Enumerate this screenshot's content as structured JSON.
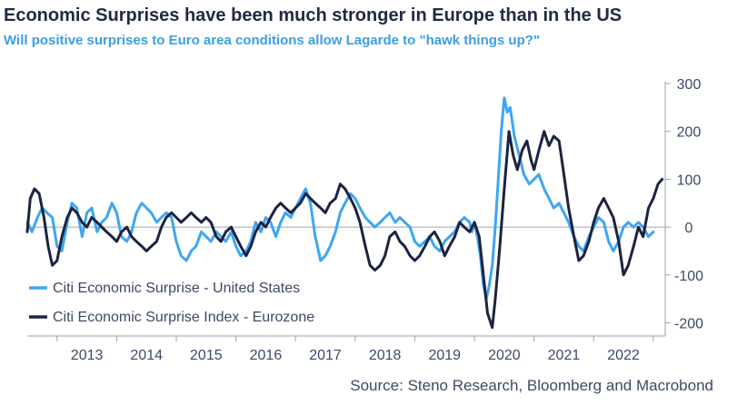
{
  "header": {
    "title": "Economic Surprises have been much stronger in Europe than in the US",
    "subtitle": "Will positive surprises to Euro area conditions allow Lagarde to \"hawk things up?\""
  },
  "footer": {
    "source": "Source: Steno Research, Bloomberg and Macrobond"
  },
  "colors": {
    "us": "#3ea6f2",
    "eurozone": "#1c2340",
    "axis": "#9aa3b2",
    "text": "#3a4a66"
  },
  "chart_data": {
    "type": "line",
    "title": "Economic Surprises have been much stronger in Europe than in the US",
    "subtitle": "Will positive surprises to Euro area conditions allow Lagarde to \"hawk things up?\"",
    "xlabel": "",
    "ylabel": "",
    "xlim": [
      2012.5,
      2023.2
    ],
    "ylim": [
      -220,
      300
    ],
    "xticks": [
      "2013",
      "2014",
      "2015",
      "2016",
      "2017",
      "2018",
      "2019",
      "2020",
      "2021",
      "2022"
    ],
    "yticks": [
      300,
      200,
      100,
      0,
      -100,
      -200
    ],
    "ytick_labels": [
      "300",
      "200",
      "100",
      "0",
      "-100",
      "-200"
    ],
    "grid": false,
    "legend_position": "bottom-left",
    "series": [
      {
        "name": "Citi Economic Surprise - United States",
        "color": "#3ea6f2",
        "points": [
          [
            2012.5,
            10
          ],
          [
            2012.58,
            -10
          ],
          [
            2012.67,
            20
          ],
          [
            2012.75,
            40
          ],
          [
            2012.83,
            30
          ],
          [
            2012.92,
            20
          ],
          [
            2013.0,
            -40
          ],
          [
            2013.08,
            -50
          ],
          [
            2013.17,
            10
          ],
          [
            2013.25,
            50
          ],
          [
            2013.33,
            40
          ],
          [
            2013.42,
            -20
          ],
          [
            2013.5,
            30
          ],
          [
            2013.58,
            40
          ],
          [
            2013.67,
            -10
          ],
          [
            2013.75,
            10
          ],
          [
            2013.83,
            20
          ],
          [
            2013.92,
            50
          ],
          [
            2014.0,
            30
          ],
          [
            2014.08,
            -20
          ],
          [
            2014.17,
            -30
          ],
          [
            2014.25,
            -10
          ],
          [
            2014.33,
            30
          ],
          [
            2014.42,
            50
          ],
          [
            2014.5,
            40
          ],
          [
            2014.58,
            30
          ],
          [
            2014.67,
            10
          ],
          [
            2014.75,
            20
          ],
          [
            2014.83,
            30
          ],
          [
            2014.92,
            20
          ],
          [
            2015.0,
            -30
          ],
          [
            2015.08,
            -60
          ],
          [
            2015.17,
            -70
          ],
          [
            2015.25,
            -50
          ],
          [
            2015.33,
            -40
          ],
          [
            2015.42,
            -10
          ],
          [
            2015.5,
            -20
          ],
          [
            2015.58,
            -30
          ],
          [
            2015.67,
            -10
          ],
          [
            2015.75,
            -20
          ],
          [
            2015.83,
            -30
          ],
          [
            2015.92,
            -10
          ],
          [
            2016.0,
            -40
          ],
          [
            2016.08,
            -60
          ],
          [
            2016.17,
            -50
          ],
          [
            2016.25,
            -30
          ],
          [
            2016.33,
            10
          ],
          [
            2016.42,
            -10
          ],
          [
            2016.5,
            20
          ],
          [
            2016.58,
            10
          ],
          [
            2016.67,
            -20
          ],
          [
            2016.75,
            10
          ],
          [
            2016.83,
            30
          ],
          [
            2016.92,
            20
          ],
          [
            2017.0,
            40
          ],
          [
            2017.08,
            60
          ],
          [
            2017.17,
            80
          ],
          [
            2017.25,
            50
          ],
          [
            2017.33,
            -20
          ],
          [
            2017.42,
            -70
          ],
          [
            2017.5,
            -60
          ],
          [
            2017.58,
            -40
          ],
          [
            2017.67,
            -10
          ],
          [
            2017.75,
            30
          ],
          [
            2017.83,
            50
          ],
          [
            2017.92,
            70
          ],
          [
            2018.0,
            60
          ],
          [
            2018.08,
            40
          ],
          [
            2018.17,
            20
          ],
          [
            2018.25,
            10
          ],
          [
            2018.33,
            0
          ],
          [
            2018.42,
            10
          ],
          [
            2018.5,
            20
          ],
          [
            2018.58,
            30
          ],
          [
            2018.67,
            10
          ],
          [
            2018.75,
            20
          ],
          [
            2018.83,
            10
          ],
          [
            2018.92,
            0
          ],
          [
            2019.0,
            -30
          ],
          [
            2019.08,
            -40
          ],
          [
            2019.17,
            -30
          ],
          [
            2019.25,
            -20
          ],
          [
            2019.33,
            -40
          ],
          [
            2019.42,
            -50
          ],
          [
            2019.5,
            -30
          ],
          [
            2019.58,
            -20
          ],
          [
            2019.67,
            -10
          ],
          [
            2019.75,
            10
          ],
          [
            2019.83,
            20
          ],
          [
            2019.92,
            10
          ],
          [
            2019.96,
            -10
          ],
          [
            2020.0,
            10
          ],
          [
            2020.05,
            -20
          ],
          [
            2020.1,
            -60
          ],
          [
            2020.15,
            -120
          ],
          [
            2020.2,
            -150
          ],
          [
            2020.25,
            -120
          ],
          [
            2020.3,
            -80
          ],
          [
            2020.35,
            0
          ],
          [
            2020.4,
            100
          ],
          [
            2020.45,
            200
          ],
          [
            2020.5,
            270
          ],
          [
            2020.55,
            240
          ],
          [
            2020.6,
            250
          ],
          [
            2020.67,
            190
          ],
          [
            2020.75,
            150
          ],
          [
            2020.83,
            110
          ],
          [
            2020.92,
            90
          ],
          [
            2021.0,
            100
          ],
          [
            2021.08,
            110
          ],
          [
            2021.17,
            80
          ],
          [
            2021.25,
            60
          ],
          [
            2021.33,
            40
          ],
          [
            2021.42,
            50
          ],
          [
            2021.5,
            30
          ],
          [
            2021.58,
            10
          ],
          [
            2021.67,
            -20
          ],
          [
            2021.75,
            -40
          ],
          [
            2021.83,
            -50
          ],
          [
            2021.92,
            -20
          ],
          [
            2022.0,
            0
          ],
          [
            2022.08,
            20
          ],
          [
            2022.17,
            10
          ],
          [
            2022.25,
            -30
          ],
          [
            2022.33,
            -50
          ],
          [
            2022.42,
            -30
          ],
          [
            2022.5,
            0
          ],
          [
            2022.58,
            10
          ],
          [
            2022.67,
            0
          ],
          [
            2022.75,
            10
          ],
          [
            2022.83,
            0
          ],
          [
            2022.92,
            -20
          ],
          [
            2023.0,
            -10
          ]
        ]
      },
      {
        "name": "Citi Economic Surprise Index - Eurozone",
        "color": "#1c2340",
        "points": [
          [
            2012.5,
            -10
          ],
          [
            2012.55,
            60
          ],
          [
            2012.62,
            80
          ],
          [
            2012.7,
            70
          ],
          [
            2012.78,
            20
          ],
          [
            2012.85,
            -40
          ],
          [
            2012.92,
            -80
          ],
          [
            2013.0,
            -70
          ],
          [
            2013.08,
            -20
          ],
          [
            2013.17,
            20
          ],
          [
            2013.25,
            40
          ],
          [
            2013.33,
            30
          ],
          [
            2013.42,
            10
          ],
          [
            2013.5,
            0
          ],
          [
            2013.58,
            20
          ],
          [
            2013.67,
            10
          ],
          [
            2013.75,
            0
          ],
          [
            2013.83,
            -10
          ],
          [
            2013.92,
            -20
          ],
          [
            2014.0,
            -30
          ],
          [
            2014.08,
            -10
          ],
          [
            2014.17,
            0
          ],
          [
            2014.25,
            -20
          ],
          [
            2014.33,
            -30
          ],
          [
            2014.42,
            -40
          ],
          [
            2014.5,
            -50
          ],
          [
            2014.58,
            -40
          ],
          [
            2014.67,
            -30
          ],
          [
            2014.75,
            0
          ],
          [
            2014.83,
            20
          ],
          [
            2014.92,
            30
          ],
          [
            2015.0,
            20
          ],
          [
            2015.08,
            10
          ],
          [
            2015.17,
            20
          ],
          [
            2015.25,
            30
          ],
          [
            2015.33,
            20
          ],
          [
            2015.42,
            10
          ],
          [
            2015.5,
            20
          ],
          [
            2015.58,
            10
          ],
          [
            2015.67,
            -20
          ],
          [
            2015.75,
            -30
          ],
          [
            2015.83,
            -10
          ],
          [
            2015.92,
            0
          ],
          [
            2016.0,
            -20
          ],
          [
            2016.08,
            -40
          ],
          [
            2016.17,
            -60
          ],
          [
            2016.25,
            -40
          ],
          [
            2016.33,
            -10
          ],
          [
            2016.42,
            10
          ],
          [
            2016.5,
            0
          ],
          [
            2016.58,
            20
          ],
          [
            2016.67,
            40
          ],
          [
            2016.75,
            50
          ],
          [
            2016.83,
            40
          ],
          [
            2016.92,
            30
          ],
          [
            2017.0,
            40
          ],
          [
            2017.08,
            50
          ],
          [
            2017.17,
            70
          ],
          [
            2017.25,
            60
          ],
          [
            2017.33,
            50
          ],
          [
            2017.42,
            40
          ],
          [
            2017.5,
            30
          ],
          [
            2017.58,
            50
          ],
          [
            2017.67,
            60
          ],
          [
            2017.75,
            90
          ],
          [
            2017.83,
            80
          ],
          [
            2017.92,
            60
          ],
          [
            2018.0,
            40
          ],
          [
            2018.08,
            10
          ],
          [
            2018.17,
            -40
          ],
          [
            2018.25,
            -80
          ],
          [
            2018.33,
            -90
          ],
          [
            2018.42,
            -80
          ],
          [
            2018.5,
            -60
          ],
          [
            2018.58,
            -20
          ],
          [
            2018.67,
            -10
          ],
          [
            2018.75,
            -30
          ],
          [
            2018.83,
            -40
          ],
          [
            2018.92,
            -60
          ],
          [
            2019.0,
            -70
          ],
          [
            2019.08,
            -60
          ],
          [
            2019.17,
            -40
          ],
          [
            2019.25,
            -20
          ],
          [
            2019.33,
            -10
          ],
          [
            2019.42,
            -30
          ],
          [
            2019.5,
            -60
          ],
          [
            2019.58,
            -40
          ],
          [
            2019.67,
            -20
          ],
          [
            2019.75,
            10
          ],
          [
            2019.83,
            0
          ],
          [
            2019.92,
            -10
          ],
          [
            2020.0,
            10
          ],
          [
            2020.08,
            -20
          ],
          [
            2020.15,
            -100
          ],
          [
            2020.22,
            -180
          ],
          [
            2020.3,
            -210
          ],
          [
            2020.35,
            -150
          ],
          [
            2020.42,
            -50
          ],
          [
            2020.5,
            80
          ],
          [
            2020.58,
            200
          ],
          [
            2020.65,
            150
          ],
          [
            2020.72,
            120
          ],
          [
            2020.8,
            160
          ],
          [
            2020.88,
            180
          ],
          [
            2020.95,
            140
          ],
          [
            2021.0,
            120
          ],
          [
            2021.08,
            160
          ],
          [
            2021.17,
            200
          ],
          [
            2021.25,
            170
          ],
          [
            2021.33,
            190
          ],
          [
            2021.42,
            180
          ],
          [
            2021.5,
            110
          ],
          [
            2021.58,
            40
          ],
          [
            2021.67,
            -20
          ],
          [
            2021.75,
            -70
          ],
          [
            2021.83,
            -60
          ],
          [
            2021.92,
            -30
          ],
          [
            2022.0,
            10
          ],
          [
            2022.08,
            40
          ],
          [
            2022.17,
            60
          ],
          [
            2022.25,
            40
          ],
          [
            2022.33,
            20
          ],
          [
            2022.42,
            -30
          ],
          [
            2022.5,
            -100
          ],
          [
            2022.58,
            -80
          ],
          [
            2022.67,
            -40
          ],
          [
            2022.75,
            0
          ],
          [
            2022.83,
            -20
          ],
          [
            2022.92,
            40
          ],
          [
            2023.0,
            60
          ],
          [
            2023.08,
            90
          ],
          [
            2023.15,
            100
          ]
        ]
      }
    ]
  }
}
